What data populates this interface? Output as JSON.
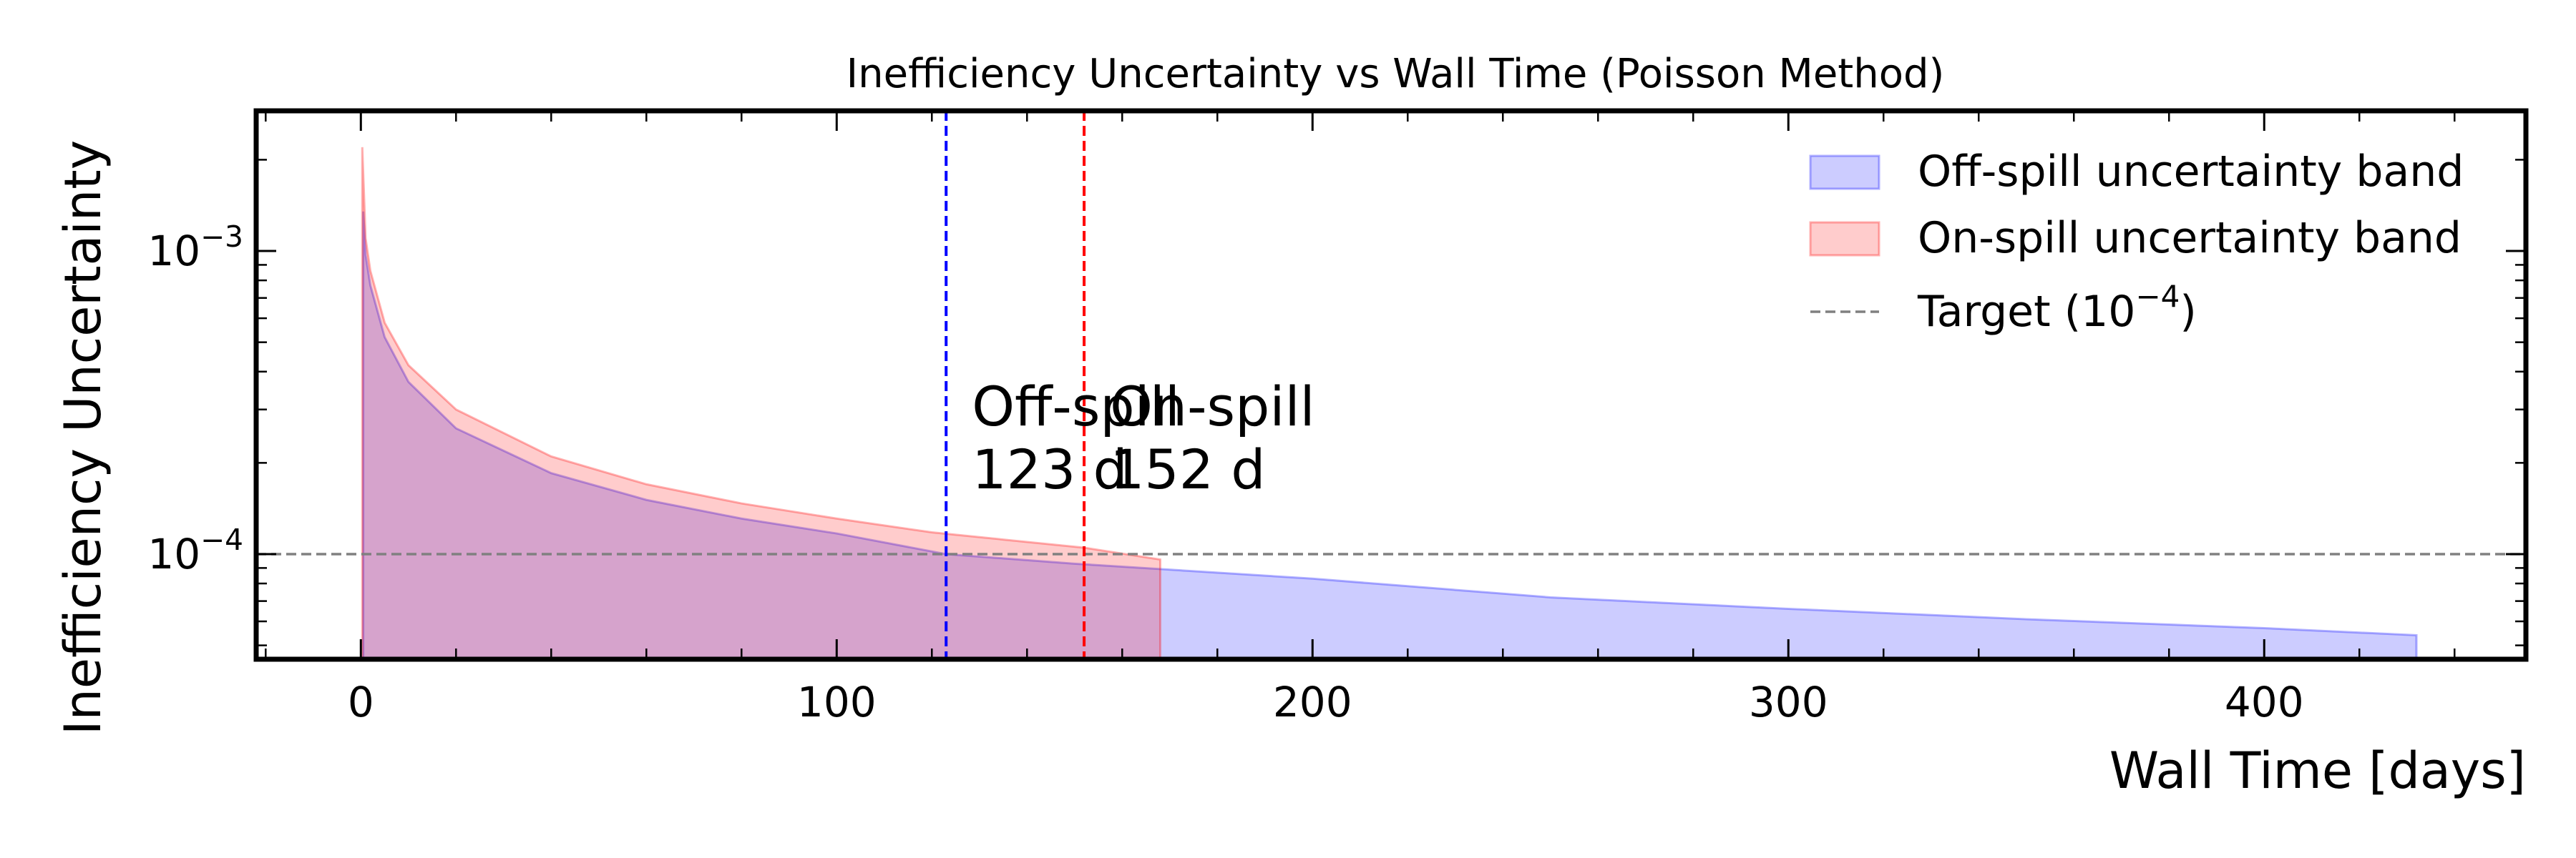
{
  "chart_data": {
    "type": "area",
    "title": "Inefficiency Uncertainty vs Wall Time (Poisson Method)",
    "xlabel": "Wall Time [days]",
    "ylabel": "Inefficiency Uncertainty",
    "xlim": [
      -22,
      455
    ],
    "ylim": [
      4.5e-05,
      0.0029
    ],
    "yscale": "log",
    "x_ticks": [
      0,
      100,
      200,
      300,
      400
    ],
    "x_tick_labels": [
      "0",
      "100",
      "200",
      "300",
      "400"
    ],
    "y_ticks": [
      0.001,
      0.0001
    ],
    "y_tick_labels": [
      {
        "base": "10",
        "exp": "−3"
      },
      {
        "base": "10",
        "exp": "−4"
      }
    ],
    "grid": false,
    "legend_position": "top-right",
    "series": [
      {
        "name": "Off-spill uncertainty band",
        "color": "#0000ff",
        "opacity": 0.2,
        "start_day": 0.5,
        "end_day": 432,
        "peak": 0.00135,
        "points": [
          [
            0.5,
            0.00135
          ],
          [
            1,
            0.00097
          ],
          [
            2,
            0.00077
          ],
          [
            5,
            0.00052
          ],
          [
            10,
            0.00037
          ],
          [
            20,
            0.00026
          ],
          [
            40,
            0.000185
          ],
          [
            60,
            0.000151
          ],
          [
            80,
            0.000131
          ],
          [
            100,
            0.000117
          ],
          [
            123,
            0.0001
          ],
          [
            150,
            9.3e-05
          ],
          [
            200,
            8.3e-05
          ],
          [
            250,
            7.2e-05
          ],
          [
            300,
            6.6e-05
          ],
          [
            350,
            6.1e-05
          ],
          [
            400,
            5.7e-05
          ],
          [
            432,
            5.4e-05
          ]
        ]
      },
      {
        "name": "On-spill uncertainty band",
        "color": "#ff0000",
        "opacity": 0.2,
        "start_day": 0.3,
        "end_day": 168,
        "peak": 0.0022,
        "points": [
          [
            0.3,
            0.0022
          ],
          [
            1,
            0.0011
          ],
          [
            2,
            0.00086
          ],
          [
            5,
            0.00058
          ],
          [
            10,
            0.00042
          ],
          [
            20,
            0.0003
          ],
          [
            40,
            0.00021
          ],
          [
            60,
            0.00017
          ],
          [
            80,
            0.000147
          ],
          [
            100,
            0.000131
          ],
          [
            120,
            0.000118
          ],
          [
            152,
            0.000105
          ],
          [
            168,
            9.6e-05
          ]
        ]
      }
    ],
    "target": {
      "label": "Target",
      "label_base": "10",
      "label_exp": "−4",
      "value": 0.0001,
      "color": "#808080"
    },
    "crossings": [
      {
        "label": "Off-spill",
        "days_label": "123 d",
        "day": 123,
        "color": "#0000ff"
      },
      {
        "label": "On-spill",
        "days_label": "152 d",
        "day": 152,
        "color": "#ff0000"
      }
    ]
  }
}
